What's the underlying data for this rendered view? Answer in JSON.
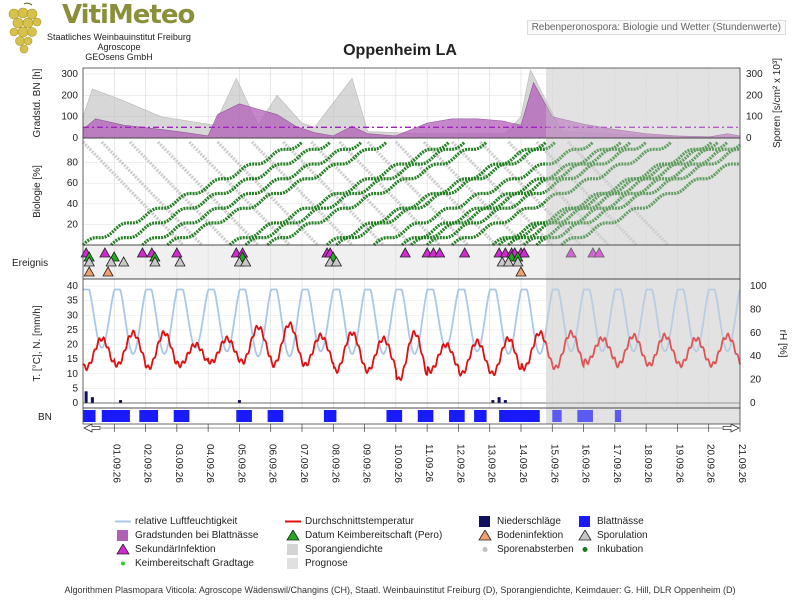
{
  "header": {
    "logo_text": "VitiMeteo",
    "logo_lines": [
      "Staatliches Weinbauinstitut Freiburg",
      "Agroscope",
      "GEOsens GmbH"
    ],
    "badge": "Rebenperonospora: Biologie und Wetter (Stundenwerte)",
    "title": "Oppenheim LA"
  },
  "footer": "Algorithmen Plasmopara Viticola: Agroscope Wädenswil/Changins (CH), Staatl. Weinbauinstitut Freiburg (D), Sporangiendichte, Keimdauer: G. Hill, DLR Oppenheim (D)",
  "colors": {
    "humidity": "#a9c8e8",
    "temperature": "#e01010",
    "precip": "#101060",
    "leaf_wet": "#1a1aff",
    "gradstunden": "#b25fb8",
    "sporangia": "#b8b8b8",
    "sekundar": "#d02ad0",
    "keim_green": "#22aa22",
    "incubation": "#1a7a1a",
    "spore_death": "#c6c6c6",
    "forecast": "#e4e4e4",
    "threshold": "#a020c0"
  },
  "legend": [
    {
      "label": "relative Luftfeuchtigkeit",
      "symbol": "line-humidity"
    },
    {
      "label": "Durchschnittstemperatur",
      "symbol": "line-temp"
    },
    {
      "label": "Niederschläge",
      "symbol": "sq-precip"
    },
    {
      "label": "Blattnässe",
      "symbol": "sq-leaf"
    },
    {
      "label": "Gradstunden bei Blattnässe",
      "symbol": "sq-grad"
    },
    {
      "label": "Datum Keimbereitschaft (Pero)",
      "symbol": "tri-green"
    },
    {
      "label": "Bodeninfektion",
      "symbol": "tri-orange"
    },
    {
      "label": "Sporulation",
      "symbol": "tri-gray"
    },
    {
      "label": "SekundärInfektion",
      "symbol": "tri-magenta"
    },
    {
      "label": "Sporangiendichte",
      "symbol": "sq-spor"
    },
    {
      "label": "Sporenabsterben",
      "symbol": "dot-gray"
    },
    {
      "label": "Inkubation",
      "symbol": "dot-green"
    },
    {
      "label": "Keimbereitschaft Gradtage",
      "symbol": "dot-lime"
    },
    {
      "label": "Prognose",
      "symbol": "sq-prog"
    }
  ],
  "chart_data": {
    "type": "line",
    "x_dates": [
      "01.09.26",
      "02.09.26",
      "03.09.26",
      "04.09.26",
      "05.09.26",
      "06.09.26",
      "07.09.26",
      "08.09.26",
      "09.09.26",
      "10.09.26",
      "11.09.26",
      "12.09.26",
      "13.09.26",
      "14.09.26",
      "15.09.26",
      "16.09.26",
      "17.09.26",
      "18.09.26",
      "19.09.26",
      "20.09.26",
      "21.09.26"
    ],
    "forecast_start": 14.8,
    "x_range": [
      0.0,
      21.0
    ],
    "panels": [
      {
        "name": "gradstunden-sporen",
        "ylabel_left": "Gradstd. BN [h]",
        "ylabel_right": "Sporen [s/cm² x 10³]",
        "ylim": [
          0,
          300
        ],
        "yticks_left": [
          0,
          100,
          200,
          300
        ],
        "yticks_right": [
          0,
          100,
          200,
          300
        ],
        "threshold": 50,
        "gradstunden": {
          "x": [
            0.0,
            0.4,
            1.3,
            2.5,
            3.3,
            4.0,
            4.3,
            5.0,
            6.2,
            6.8,
            7.4,
            8.0,
            8.6,
            9.1,
            10.0,
            11.0,
            11.8,
            12.6,
            13.4,
            14.0,
            14.4,
            15.0,
            16.0,
            17.0,
            18.0,
            19.0,
            20.0,
            20.6,
            21.0
          ],
          "y": [
            40,
            90,
            60,
            40,
            25,
            10,
            110,
            160,
            110,
            55,
            25,
            10,
            55,
            20,
            10,
            70,
            90,
            90,
            80,
            60,
            260,
            100,
            65,
            40,
            20,
            10,
            5,
            20,
            10
          ]
        },
        "sporangiendichte": {
          "x": [
            0.0,
            0.3,
            1.2,
            2.5,
            4.2,
            4.9,
            5.6,
            6.2,
            7.0,
            7.4,
            8.6,
            9.1,
            11.0,
            12.2,
            13.5,
            14.0,
            14.3,
            15.3,
            16.8,
            18.0,
            21.0
          ],
          "y": [
            100,
            230,
            180,
            100,
            60,
            280,
            60,
            200,
            70,
            50,
            280,
            30,
            20,
            20,
            20,
            100,
            320,
            30,
            20,
            10,
            5
          ]
        }
      },
      {
        "name": "biologie",
        "ylabel_left": "Biologie [%]",
        "ylim": [
          0,
          100
        ],
        "yticks_left": [
          20,
          40,
          60,
          80
        ],
        "incubation_starts": [
          0.0,
          0.9,
          1.9,
          2.7,
          4.7,
          5.2,
          5.9,
          7.8,
          8.1,
          9.3,
          10.2,
          10.5,
          11.0,
          11.8,
          13.1,
          13.3,
          13.6,
          14.1,
          14.5,
          15.3
        ],
        "spore_death_starts": [
          0.0,
          0.6,
          1.5,
          2.4,
          3.4,
          4.3,
          5.4,
          6.4,
          7.3,
          8.2,
          9.1,
          10.0,
          10.9,
          11.8,
          12.7,
          13.6,
          14.5,
          15.5
        ]
      },
      {
        "name": "ereignis",
        "ylabel_left": "Ereignis",
        "sekundarinfektion": [
          0.1,
          0.7,
          1.9,
          2.2,
          3.0,
          4.9,
          5.1,
          7.8,
          7.9,
          10.3,
          11.0,
          11.2,
          11.4,
          12.2,
          13.3,
          13.5,
          13.7,
          13.8,
          14.0,
          14.1,
          15.6,
          16.3,
          16.5
        ],
        "sporulation": [
          0.2,
          0.9,
          1.3,
          2.3,
          3.1,
          5.0,
          5.2,
          7.9,
          8.1,
          13.4,
          13.6,
          13.9
        ],
        "keimbereitschaft": [
          0.1,
          0.9,
          2.2,
          5.0,
          7.9,
          13.6,
          13.8
        ],
        "bodeninfektion": [
          0.2,
          0.8,
          14.0
        ]
      },
      {
        "name": "wetter",
        "ylabel_left": "T. [°C], N. [mm/h]",
        "ylabel_right": "rH [%]",
        "ylim_left": [
          0,
          40
        ],
        "yticks_left": [
          0,
          5,
          10,
          15,
          20,
          25,
          30,
          35,
          40
        ],
        "ylim_right": [
          0,
          100
        ],
        "yticks_right": [
          0,
          20,
          40,
          60,
          80,
          100
        ],
        "temp_day_max": [
          22,
          24,
          24,
          20,
          22,
          26,
          27,
          23,
          24,
          22,
          24,
          20,
          21,
          22,
          24,
          24,
          22,
          23,
          23,
          22,
          23
        ],
        "temp_night_min": [
          12,
          13,
          12,
          13,
          14,
          14,
          13,
          13,
          11,
          11,
          8,
          11,
          10,
          10,
          12,
          12,
          14,
          13,
          13,
          13,
          13
        ],
        "rh_day_min": [
          45,
          40,
          40,
          45,
          42,
          38,
          38,
          42,
          40,
          40,
          40,
          45,
          42,
          40,
          40,
          42,
          42,
          42,
          42,
          42,
          42
        ],
        "rh_night_max": [
          97,
          97,
          97,
          97,
          97,
          97,
          97,
          97,
          97,
          97,
          97,
          97,
          97,
          97,
          97,
          97,
          97,
          97,
          97,
          97,
          97
        ],
        "precip_x": [
          0.1,
          0.3,
          1.2,
          5.0,
          13.1,
          13.3,
          13.5
        ],
        "precip_mm": [
          4,
          2,
          1,
          1,
          1,
          2,
          1
        ]
      },
      {
        "name": "blattnaesse",
        "ylabel_left": "BN",
        "wet_intervals": [
          [
            0.0,
            0.4
          ],
          [
            0.6,
            1.5
          ],
          [
            1.8,
            2.4
          ],
          [
            2.9,
            3.4
          ],
          [
            4.9,
            5.4
          ],
          [
            5.9,
            6.4
          ],
          [
            7.7,
            8.1
          ],
          [
            9.7,
            10.2
          ],
          [
            10.7,
            11.2
          ],
          [
            11.7,
            12.2
          ],
          [
            12.5,
            12.9
          ],
          [
            13.3,
            14.6
          ],
          [
            15.0,
            15.3
          ],
          [
            15.8,
            16.3
          ],
          [
            17.0,
            17.2
          ]
        ]
      }
    ]
  }
}
